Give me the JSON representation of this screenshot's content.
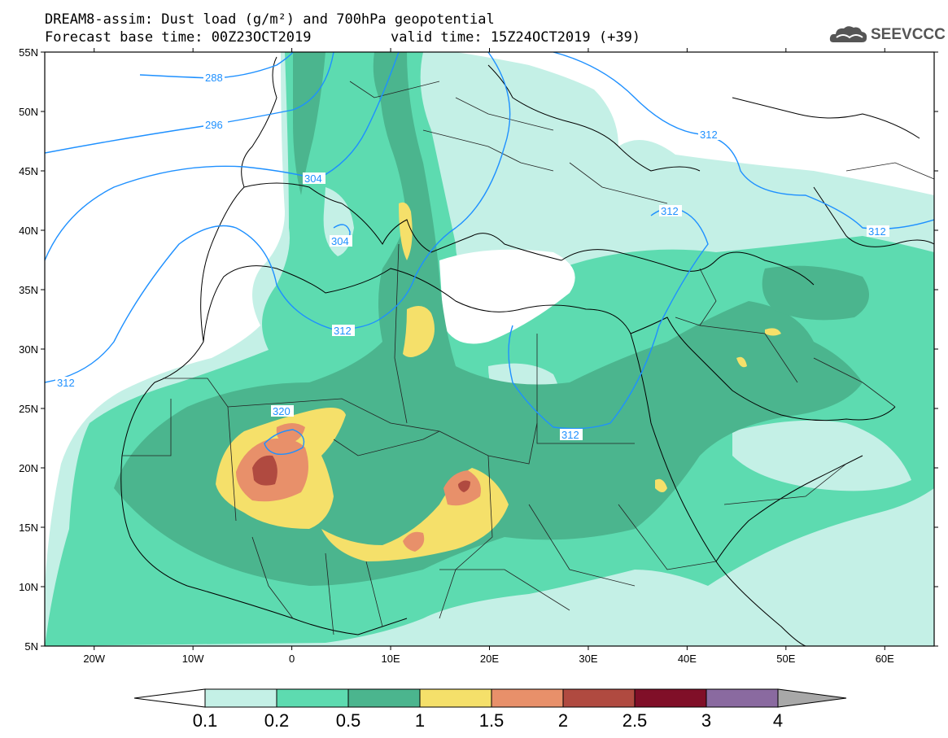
{
  "title": {
    "line1": "DREAM8-assim: Dust load (g/m²) and 700hPa geopotential",
    "line2_left": "Forecast base time: 00Z23OCT2019",
    "line2_right": "valid time: 15Z24OCT2019 (+39)"
  },
  "logo": {
    "text": "SEEVCCC",
    "icon": "cloud-icon"
  },
  "map": {
    "lon_range": [
      -25,
      65
    ],
    "lat_range": [
      5,
      55
    ],
    "lat_ticks": [
      "55N",
      "50N",
      "45N",
      "40N",
      "35N",
      "30N",
      "25N",
      "20N",
      "15N",
      "10N",
      "5N"
    ],
    "lon_ticks": [
      "20W",
      "10W",
      "0",
      "10E",
      "20E",
      "30E",
      "40E",
      "50E",
      "60E"
    ],
    "contour_labels": [
      "288",
      "296",
      "304",
      "304",
      "312",
      "312",
      "312",
      "312",
      "312",
      "312",
      "320"
    ]
  },
  "colorbar": {
    "labels": [
      "0.1",
      "0.2",
      "0.5",
      "1",
      "1.5",
      "2",
      "2.5",
      "3",
      "4"
    ],
    "colors": [
      "#c4f0e6",
      "#5ddbb0",
      "#4bb58e",
      "#f5e06a",
      "#e8906a",
      "#b04a40",
      "#800f28",
      "#8a6aa0"
    ],
    "low_color": "#ffffff",
    "high_color": "#a8a8a8"
  }
}
